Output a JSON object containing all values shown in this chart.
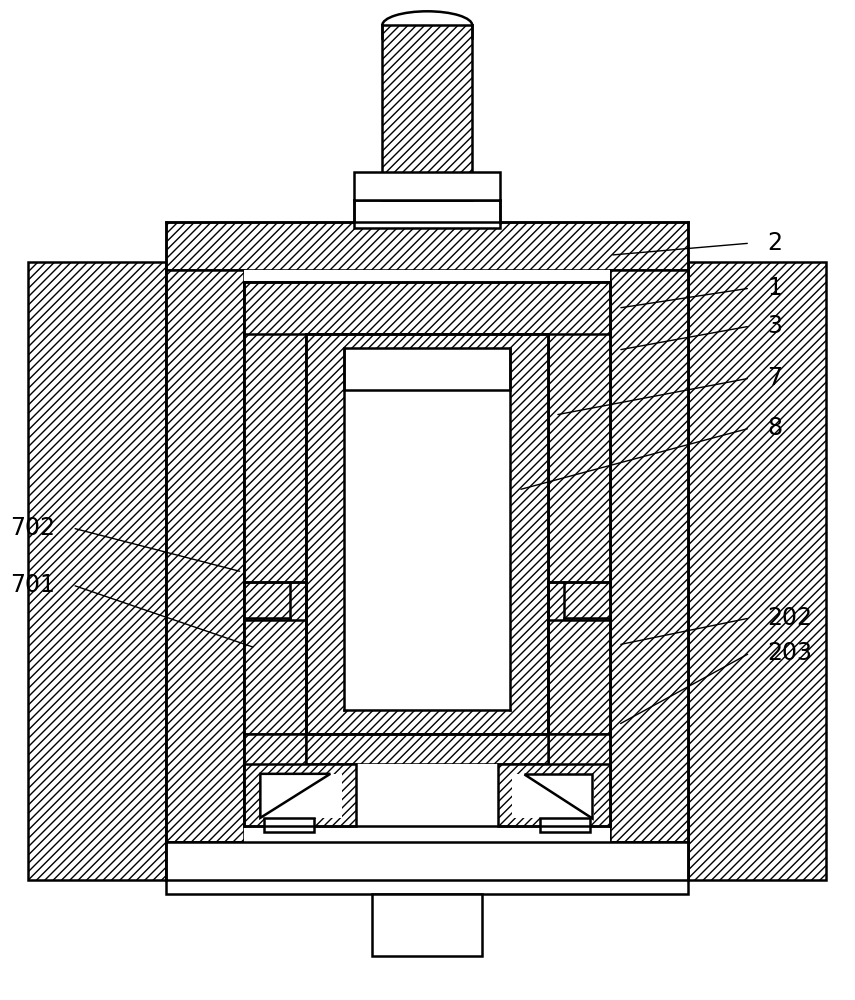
{
  "bg_color": "#ffffff",
  "line_color": "#000000",
  "label_fontsize": 17,
  "line_width": 1.8,
  "callouts": [
    [
      "2",
      762,
      243,
      610,
      255
    ],
    [
      "1",
      762,
      288,
      618,
      308
    ],
    [
      "3",
      762,
      326,
      618,
      350
    ],
    [
      "7",
      762,
      378,
      555,
      415
    ],
    [
      "8",
      762,
      428,
      518,
      490
    ],
    [
      "202",
      762,
      618,
      618,
      645
    ],
    [
      "203",
      762,
      653,
      618,
      725
    ],
    [
      "702",
      60,
      528,
      242,
      572
    ],
    [
      "701",
      60,
      585,
      255,
      648
    ]
  ]
}
